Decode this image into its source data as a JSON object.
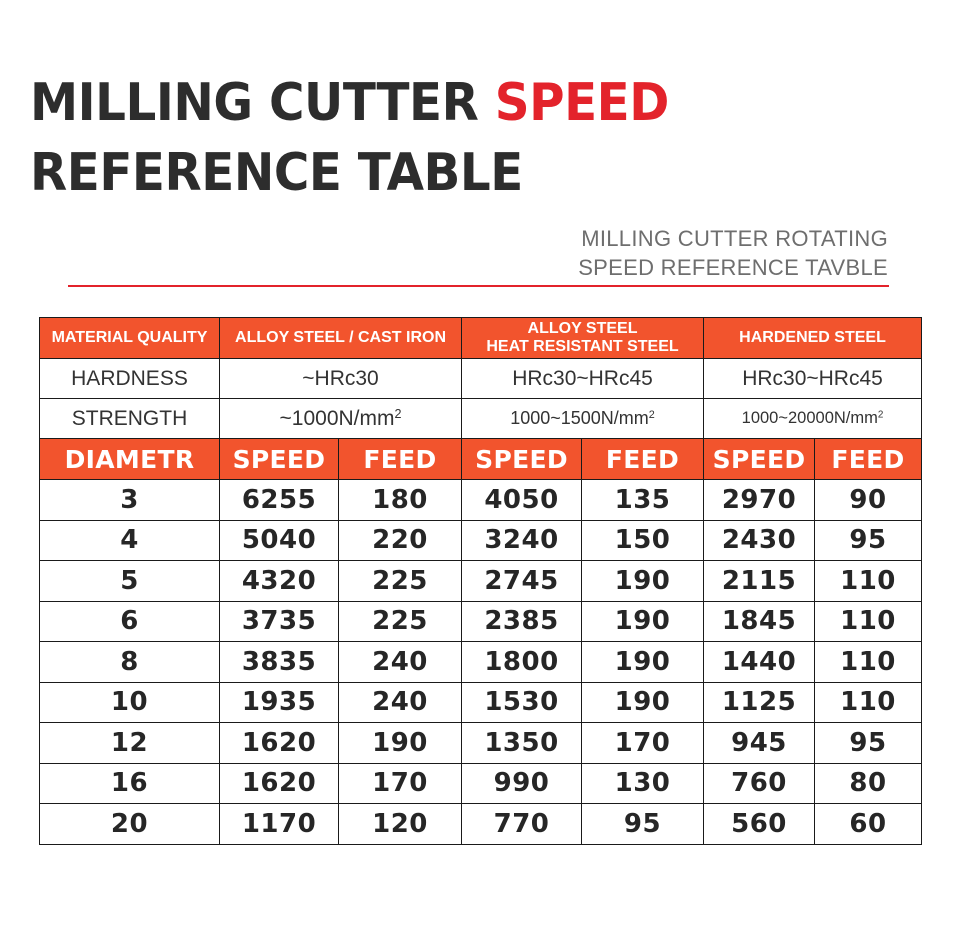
{
  "header": {
    "title_line1": "MILLING CUTTER ",
    "title_accent": "SPEED",
    "title_line2": "REFERENCE TABLE",
    "subtitle_line1": "MILLING CUTTER ROTATING",
    "subtitle_line2": "SPEED REFERENCE TAVBLE"
  },
  "table": {
    "material_label": "MATERIAL QUALITY",
    "materials": {
      "m1": "ALLOY STEEL / CAST IRON",
      "m2_line1": "ALLOY STEEL",
      "m2_line2": "HEAT RESISTANT STEEL",
      "m3": "HARDENED STEEL"
    },
    "hardness_label": "HARDNESS",
    "hardness": {
      "m1": "~HRc30",
      "m2": "HRc30~HRc45",
      "m3": "HRc30~HRc45"
    },
    "strength_label": "STRENGTH",
    "strength": {
      "m1": "~1000N/mm",
      "m2": "1000~1500N/mm",
      "m3": "1000~20000N/mm",
      "unit_exp": "2"
    },
    "col_headers": {
      "diameter": "DIAMETR",
      "speed": "SPEED",
      "feed": "FEED"
    },
    "rows": [
      [
        "3",
        "6255",
        "180",
        "4050",
        "135",
        "2970",
        "90"
      ],
      [
        "4",
        "5040",
        "220",
        "3240",
        "150",
        "2430",
        "95"
      ],
      [
        "5",
        "4320",
        "225",
        "2745",
        "190",
        "2115",
        "110"
      ],
      [
        "6",
        "3735",
        "225",
        "2385",
        "190",
        "1845",
        "110"
      ],
      [
        "8",
        "3835",
        "240",
        "1800",
        "190",
        "1440",
        "110"
      ],
      [
        "10",
        "1935",
        "240",
        "1530",
        "190",
        "1125",
        "110"
      ],
      [
        "12",
        "1620",
        "190",
        "1350",
        "170",
        "945",
        "95"
      ],
      [
        "16",
        "1620",
        "170",
        "990",
        "130",
        "760",
        "80"
      ],
      [
        "20",
        "1170",
        "120",
        "770",
        "95",
        "560",
        "60"
      ]
    ]
  },
  "colors": {
    "accent": "#e3232b",
    "header_bg": "#f2542d",
    "text": "#2d2d2d",
    "subtitle": "#6e6e6e"
  }
}
